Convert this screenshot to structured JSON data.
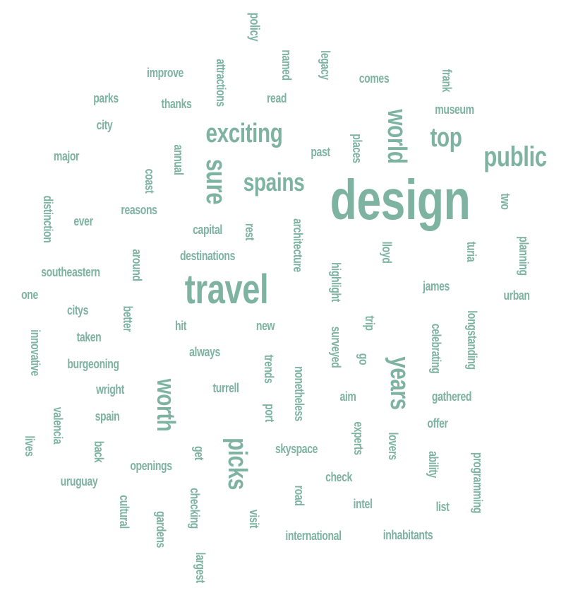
{
  "word_color": "#7db3a0",
  "words": [
    {
      "text": "design"
    },
    {
      "text": "travel"
    },
    {
      "text": "public"
    },
    {
      "text": "exciting"
    },
    {
      "text": "spains"
    },
    {
      "text": "sure"
    },
    {
      "text": "world"
    },
    {
      "text": "top"
    },
    {
      "text": "years"
    },
    {
      "text": "worth"
    },
    {
      "text": "picks"
    },
    {
      "text": "policy"
    },
    {
      "text": "named"
    },
    {
      "text": "legacy"
    },
    {
      "text": "attractions"
    },
    {
      "text": "improve"
    },
    {
      "text": "comes"
    },
    {
      "text": "frank"
    },
    {
      "text": "parks"
    },
    {
      "text": "thanks"
    },
    {
      "text": "read"
    },
    {
      "text": "museum"
    },
    {
      "text": "city"
    },
    {
      "text": "annual"
    },
    {
      "text": "past"
    },
    {
      "text": "places"
    },
    {
      "text": "major"
    },
    {
      "text": "coast"
    },
    {
      "text": "distinction"
    },
    {
      "text": "reasons"
    },
    {
      "text": "two"
    },
    {
      "text": "ever"
    },
    {
      "text": "capital"
    },
    {
      "text": "rest"
    },
    {
      "text": "architecture"
    },
    {
      "text": "turia"
    },
    {
      "text": "lloyd"
    },
    {
      "text": "planning"
    },
    {
      "text": "around"
    },
    {
      "text": "destinations"
    },
    {
      "text": "southeastern"
    },
    {
      "text": "highlight"
    },
    {
      "text": "james"
    },
    {
      "text": "one"
    },
    {
      "text": "urban"
    },
    {
      "text": "citys"
    },
    {
      "text": "better"
    },
    {
      "text": "longstanding"
    },
    {
      "text": "innovative"
    },
    {
      "text": "hit"
    },
    {
      "text": "new"
    },
    {
      "text": "trip"
    },
    {
      "text": "celebrating"
    },
    {
      "text": "taken"
    },
    {
      "text": "surveyed"
    },
    {
      "text": "always"
    },
    {
      "text": "go"
    },
    {
      "text": "burgeoning"
    },
    {
      "text": "trends"
    },
    {
      "text": "nonetheless"
    },
    {
      "text": "wright"
    },
    {
      "text": "turrell"
    },
    {
      "text": "aim"
    },
    {
      "text": "gathered"
    },
    {
      "text": "valencia"
    },
    {
      "text": "spain"
    },
    {
      "text": "port"
    },
    {
      "text": "offer"
    },
    {
      "text": "experts"
    },
    {
      "text": "lives"
    },
    {
      "text": "back"
    },
    {
      "text": "skyspace"
    },
    {
      "text": "lovers"
    },
    {
      "text": "get"
    },
    {
      "text": "ability"
    },
    {
      "text": "openings"
    },
    {
      "text": "programming"
    },
    {
      "text": "check"
    },
    {
      "text": "uruguay"
    },
    {
      "text": "road"
    },
    {
      "text": "checking"
    },
    {
      "text": "cultural"
    },
    {
      "text": "intel"
    },
    {
      "text": "list"
    },
    {
      "text": "visit"
    },
    {
      "text": "gardens"
    },
    {
      "text": "international"
    },
    {
      "text": "inhabitants"
    },
    {
      "text": "largest"
    }
  ]
}
